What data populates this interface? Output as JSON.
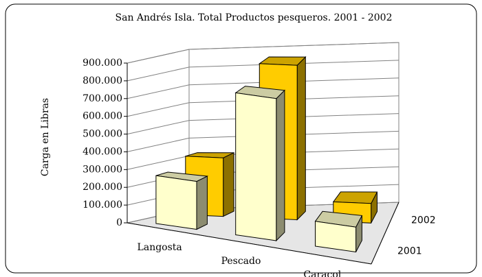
{
  "chart_data": {
    "type": "bar3d",
    "title": "San Andrés Isla. Total Productos pesqueros. 2001 - 2002",
    "y_label": "Carga en Libras",
    "categories": [
      "Langosta",
      "Pescado",
      "Caracol"
    ],
    "series": [
      {
        "name": "2001",
        "color": "#ffffcc",
        "values": [
          270000,
          800000,
          140000
        ]
      },
      {
        "name": "2002",
        "color": "#ffcc00",
        "values": [
          330000,
          870000,
          110000
        ]
      }
    ],
    "ylim": [
      0,
      900000
    ],
    "yticks": [
      0,
      {
        "value": 100000,
        "label": "100.000"
      },
      {
        "value": 200000,
        "label": "200.000"
      },
      {
        "value": 300000,
        "label": "300.000"
      },
      {
        "value": 400000,
        "label": "400.000"
      },
      {
        "value": 500000,
        "label": "500.000"
      },
      {
        "value": 600000,
        "label": "600.000"
      },
      {
        "value": 700000,
        "label": "700.000"
      },
      {
        "value": 800000,
        "label": "800.000"
      },
      {
        "value": 900000,
        "label": "900.000"
      }
    ],
    "grid": true
  }
}
